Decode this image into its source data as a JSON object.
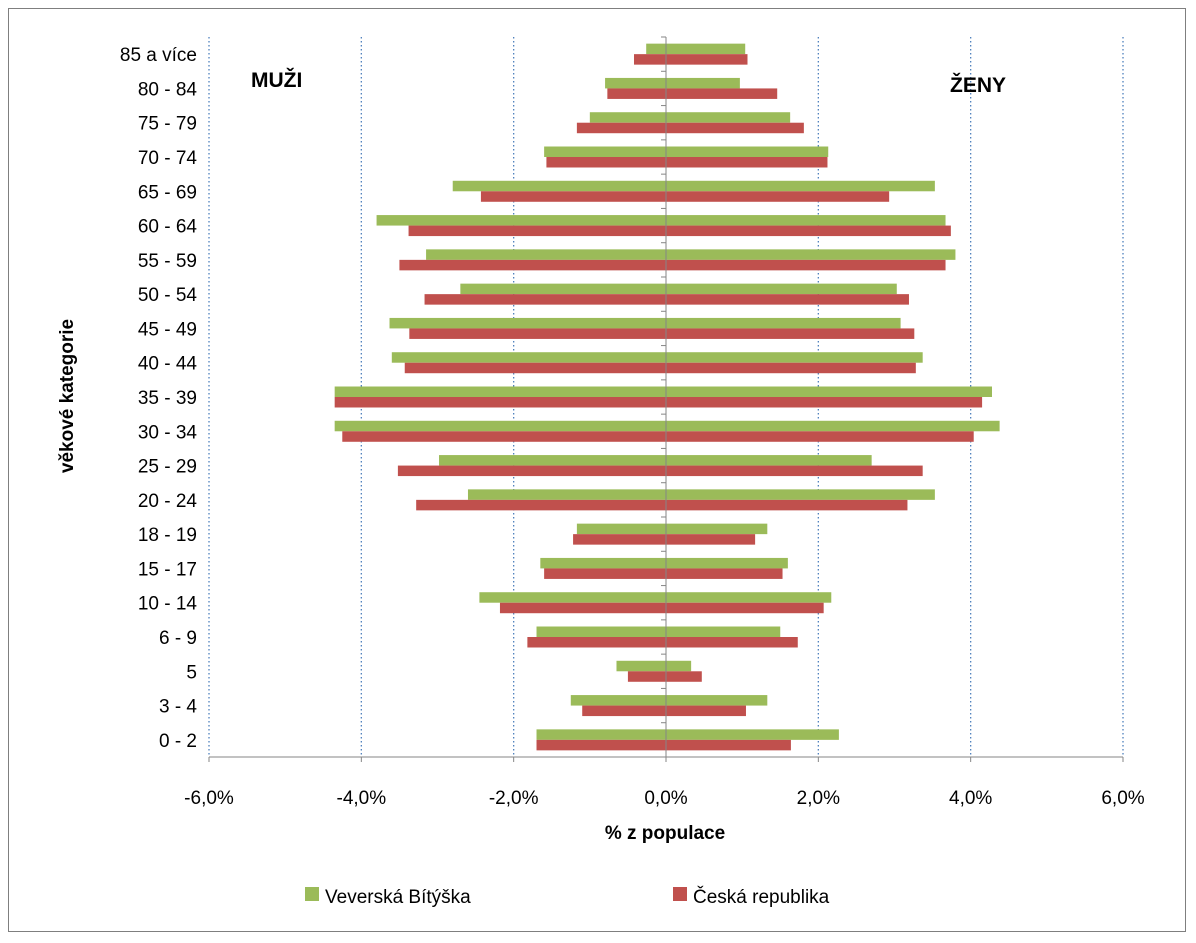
{
  "chart_data": {
    "type": "bar",
    "orientation": "horizontal",
    "title": "",
    "xlabel": "% z populace",
    "ylabel": "věkové kategorie",
    "xlim": [
      -6,
      6
    ],
    "x_ticks": [
      -6,
      -4,
      -2,
      0,
      2,
      4,
      6
    ],
    "x_tick_labels": [
      "-6,0%",
      "-4,0%",
      "-2,0%",
      "0,0%",
      "2,0%",
      "4,0%",
      "6,0%"
    ],
    "grid": "vertical dotted",
    "legend_position": "bottom",
    "categories": [
      "0 - 2",
      "3 - 4",
      "5",
      "6 - 9",
      "10 - 14",
      "15 - 17",
      "18 - 19",
      "20 - 24",
      "25 - 29",
      "30 - 34",
      "35 - 39",
      "40 - 44",
      "45 - 49",
      "50 - 54",
      "55 - 59",
      "60 - 64",
      "65 - 69",
      "70 - 74",
      "75 - 79",
      "80 - 84",
      "85 a více"
    ],
    "annotations": [
      {
        "text": "MUŽI",
        "side": "left"
      },
      {
        "text": "ŽENY",
        "side": "right"
      }
    ],
    "series": [
      {
        "name": "Veverská Bítýška",
        "color": "#9bbb59",
        "male": [
          -1.7,
          -1.25,
          -0.65,
          -1.7,
          -2.45,
          -1.65,
          -1.17,
          -2.6,
          -2.98,
          -4.35,
          -4.35,
          -3.6,
          -3.63,
          -2.7,
          -3.15,
          -3.8,
          -2.8,
          -1.6,
          -1.0,
          -0.8,
          -0.26
        ],
        "female": [
          2.27,
          1.33,
          0.33,
          1.5,
          2.17,
          1.6,
          1.33,
          3.53,
          2.7,
          4.38,
          4.28,
          3.37,
          3.08,
          3.03,
          3.8,
          3.67,
          3.53,
          2.13,
          1.63,
          0.97,
          1.04
        ]
      },
      {
        "name": "Česká republika",
        "color": "#c0504d",
        "male": [
          -1.7,
          -1.1,
          -0.5,
          -1.82,
          -2.18,
          -1.6,
          -1.22,
          -3.28,
          -3.52,
          -4.25,
          -4.35,
          -3.43,
          -3.37,
          -3.17,
          -3.5,
          -3.38,
          -2.43,
          -1.57,
          -1.17,
          -0.77,
          -0.42
        ],
        "female": [
          1.64,
          1.05,
          0.47,
          1.73,
          2.07,
          1.53,
          1.17,
          3.17,
          3.37,
          4.04,
          4.15,
          3.28,
          3.26,
          3.19,
          3.67,
          3.74,
          2.93,
          2.12,
          1.81,
          1.46,
          1.07
        ]
      }
    ]
  }
}
